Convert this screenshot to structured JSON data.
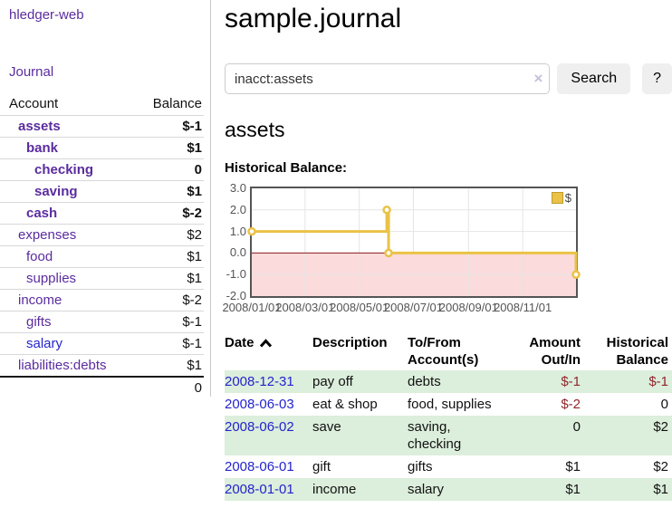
{
  "app": {
    "title": "hledger-web"
  },
  "sidebar": {
    "journal_label": "Journal",
    "accounts_table": {
      "header_account": "Account",
      "header_balance": "Balance",
      "rows": [
        {
          "account": "assets",
          "balance": "$-1",
          "indent": 0,
          "bold": true,
          "balance_class": "neg-strong"
        },
        {
          "account": "bank",
          "balance": "$1",
          "indent": 1,
          "bold": true,
          "balance_class": ""
        },
        {
          "account": "checking",
          "balance": "0",
          "indent": 2,
          "bold": true,
          "balance_class": ""
        },
        {
          "account": "saving",
          "balance": "$1",
          "indent": 2,
          "bold": true,
          "balance_class": ""
        },
        {
          "account": "cash",
          "balance": "$-2",
          "indent": 1,
          "bold": true,
          "balance_class": "neg-strong"
        },
        {
          "account": "expenses",
          "balance": "$2",
          "indent": 0,
          "bold": false,
          "balance_class": ""
        },
        {
          "account": "food",
          "balance": "$1",
          "indent": 1,
          "bold": false,
          "balance_class": ""
        },
        {
          "account": "supplies",
          "balance": "$1",
          "indent": 1,
          "bold": false,
          "balance_class": ""
        },
        {
          "account": "income",
          "balance": "$-2",
          "indent": 0,
          "bold": false,
          "balance_class": "neg-dim"
        },
        {
          "account": "gifts",
          "balance": "$-1",
          "indent": 1,
          "bold": false,
          "balance_class": "neg-dim"
        },
        {
          "account": "salary",
          "balance": "$-1",
          "indent": 1,
          "bold": false,
          "balance_class": "neg-dim",
          "link": "blue"
        },
        {
          "account": "liabilities:debts",
          "balance": "$1",
          "indent": 0,
          "bold": false,
          "balance_class": ""
        }
      ],
      "total": "0"
    }
  },
  "main": {
    "title": "sample.journal",
    "search": {
      "value": "inacct:assets",
      "clear_icon": "×",
      "button_label": "Search",
      "help_label": "?"
    },
    "account_heading": "assets",
    "chart_label": "Historical Balance:"
  },
  "chart_data": {
    "type": "line",
    "title": "Historical Balance",
    "step": true,
    "xlim_days": [
      0,
      365
    ],
    "ylim": [
      -2,
      3
    ],
    "ytick_values": [
      3,
      2,
      1,
      0,
      -1,
      -2
    ],
    "ytick_labels": [
      "3.0",
      "2.0",
      "1.0",
      "0.0",
      "-1.0",
      "-2.0"
    ],
    "xticks": [
      {
        "day": 0,
        "label": "2008/01/01"
      },
      {
        "day": 60,
        "label": "2008/03/01"
      },
      {
        "day": 121,
        "label": "2008/05/01"
      },
      {
        "day": 182,
        "label": "2008/07/01"
      },
      {
        "day": 244,
        "label": "2008/09/01"
      },
      {
        "day": 305,
        "label": "2008/11/01"
      }
    ],
    "series": [
      {
        "name": "$",
        "color": "#EAC246",
        "marker": "circle-open",
        "points": [
          {
            "date": "2008-01-01",
            "day": 0,
            "value": 1
          },
          {
            "date": "2008-06-01",
            "day": 152,
            "value": 2
          },
          {
            "date": "2008-06-03",
            "day": 154,
            "value": 0
          },
          {
            "date": "2008-12-31",
            "day": 365,
            "value": -1
          }
        ]
      }
    ],
    "legend": {
      "position": "top-right",
      "label": "$"
    },
    "grid": true,
    "grid_color": "#E5E5E5",
    "zero_line_color": "#8B1A1A",
    "negative_region_fill": "#FBDBDB"
  },
  "register": {
    "headers": {
      "date": "Date",
      "sort_icon": "chevron-up",
      "description": "Description",
      "accounts": "To/From Account(s)",
      "amount": "Amount Out/In",
      "balance": "Historical Balance"
    },
    "rows": [
      {
        "date": "2008-12-31",
        "description": "pay off",
        "accounts": "debts",
        "amount": "$-1",
        "amount_neg": true,
        "balance": "$-1",
        "balance_neg": true
      },
      {
        "date": "2008-06-03",
        "description": "eat & shop",
        "accounts": "food, supplies",
        "amount": "$-2",
        "amount_neg": true,
        "balance": "0",
        "balance_neg": false
      },
      {
        "date": "2008-06-02",
        "description": "save",
        "accounts": "saving, checking",
        "amount": "0",
        "amount_neg": false,
        "balance": "$2",
        "balance_neg": false
      },
      {
        "date": "2008-06-01",
        "description": "gift",
        "accounts": "gifts",
        "amount": "$1",
        "amount_neg": false,
        "balance": "$2",
        "balance_neg": false
      },
      {
        "date": "2008-01-01",
        "description": "income",
        "accounts": "salary",
        "amount": "$1",
        "amount_neg": false,
        "balance": "$1",
        "balance_neg": false
      }
    ]
  },
  "colors": {
    "link_purple": "#5A2C9E",
    "link_blue": "#2424CC",
    "negative_strong": "#8F262B",
    "negative_dim": "#C4827E",
    "row_stripe_green": "#DCEEDC",
    "chart_line_gold": "#EAC246",
    "button_gray": "#EFEFEF"
  }
}
